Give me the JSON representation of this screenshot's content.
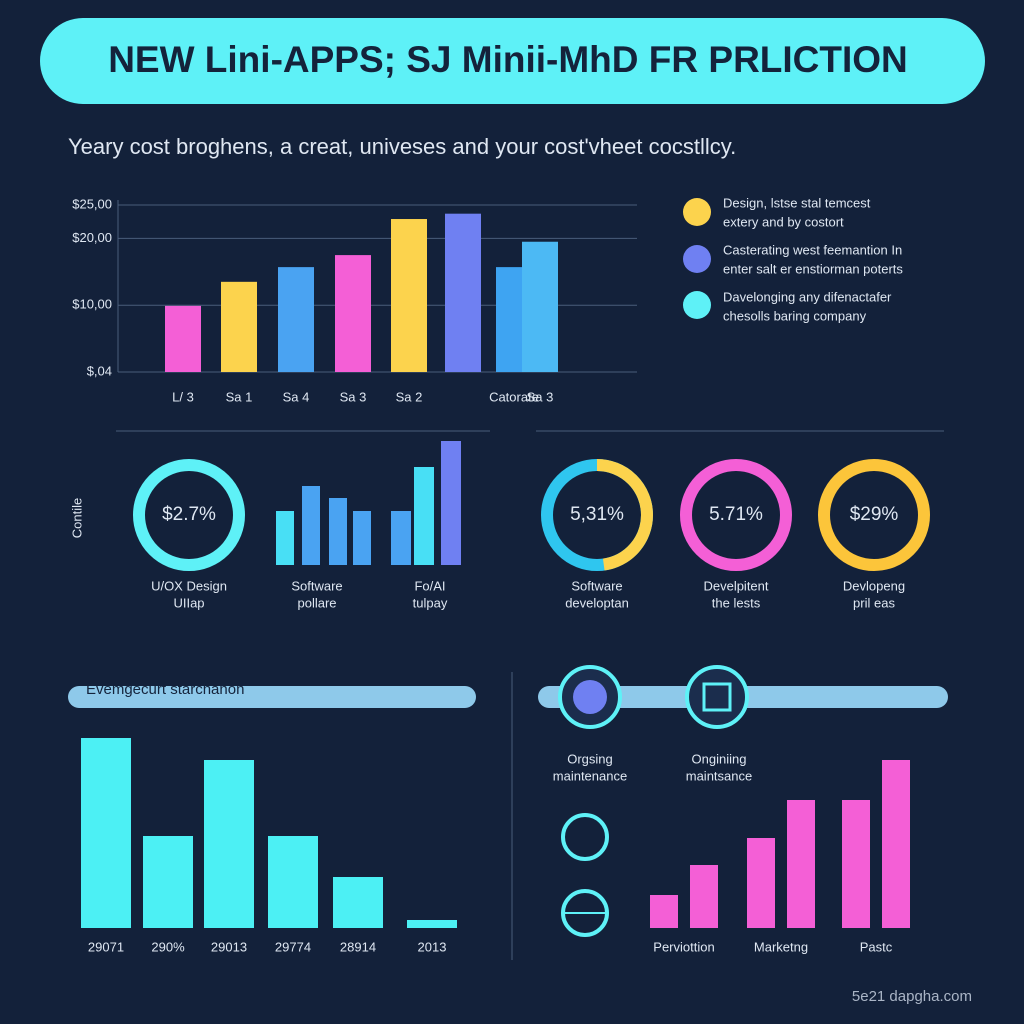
{
  "header": {
    "title": "NEW Lini-APPS; SJ Minii-MhD FR PRLICTION",
    "subtitle": "Yeary cost broghens, a creat, univeses and your cost'vheet cocstllcy."
  },
  "legend": [
    [
      "Design, lstse stal temcest",
      "extery and by costort"
    ],
    [
      "Casterating west feemantion In",
      "enter salt er enstiorman poterts"
    ],
    [
      "Davelonging any difenactafer",
      "chesolls baring company"
    ]
  ],
  "side_label": "Contile",
  "donuts": [
    {
      "text": "$2.7%",
      "caption": [
        "U/OX Design",
        "UIIap"
      ]
    },
    {
      "text": "5,31%",
      "caption": [
        "Software",
        "developtan"
      ]
    },
    {
      "text": "5.71%",
      "caption": [
        "Develpitent",
        "the lests"
      ]
    },
    {
      "text": "$29%",
      "caption": [
        "Devlopeng",
        "pril eas"
      ]
    }
  ],
  "panel": {
    "title": "Evemgecurt starchanon",
    "items": [
      [
        "Orgsing",
        "maintenance"
      ],
      [
        "Onginiing",
        "maintsance"
      ]
    ]
  },
  "watermark": "5e21 dapgha.com",
  "chart_data": [
    {
      "type": "bar",
      "categories": [
        "L/ 3",
        "Sa 1",
        "Sa 4",
        "Sa 3",
        "Sa 2",
        null,
        "Catorate",
        "Sa 3"
      ],
      "values": [
        9.9,
        13.5,
        15.7,
        17.5,
        22.9,
        23.7,
        15.7,
        19.5
      ],
      "colors": [
        "#f45fd6",
        "#fcd34d",
        "#4aa3f2",
        "#f45fd6",
        "#fcd34d",
        "#6f80f2",
        "#3ea4f2",
        "#4cb9f4"
      ],
      "ylim": [
        0,
        25
      ],
      "yticks": [
        {
          "value": 0,
          "label": "$,04"
        },
        {
          "value": 10,
          "label": "$10,00"
        },
        {
          "value": 20,
          "label": "$20,00"
        },
        {
          "value": 25,
          "label": "$25,00"
        }
      ],
      "grid": true
    },
    {
      "type": "minibar",
      "caption": [
        "Software",
        "pollare"
      ],
      "values": [
        54,
        79,
        67,
        54
      ],
      "colors": [
        "#48dff5",
        "#4aa3f2",
        "#4aa3f2",
        "#4aa3f2"
      ]
    },
    {
      "type": "minibar",
      "caption": [
        "Fo/AI",
        "tulpay"
      ],
      "values": [
        54,
        98,
        124
      ],
      "colors": [
        "#4aa3f2",
        "#48dff5",
        "#6f80f2"
      ]
    },
    {
      "type": "bar",
      "categories": [
        "29071",
        "290%",
        "29013",
        "29774",
        "28914",
        "2013"
      ],
      "values": [
        190,
        92,
        168,
        92,
        51,
        8
      ],
      "color": "#4cf0f4"
    },
    {
      "type": "groupbar",
      "categories": [
        "Perviottion",
        "Marketng",
        "Pastc"
      ],
      "series": [
        {
          "color": "#f45fd6",
          "values": [
            33,
            90,
            128
          ]
        },
        {
          "color": "#f45fd6",
          "values": [
            63,
            128,
            168
          ]
        }
      ]
    }
  ]
}
